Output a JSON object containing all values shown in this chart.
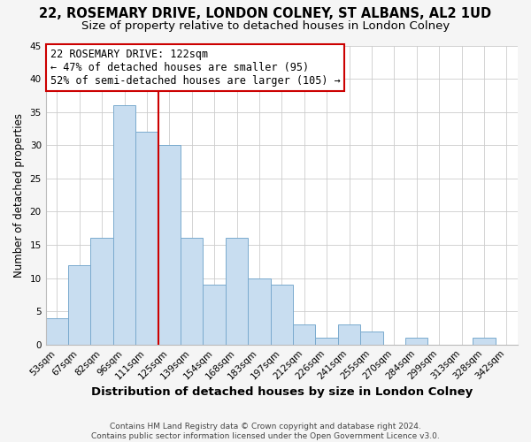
{
  "title": "22, ROSEMARY DRIVE, LONDON COLNEY, ST ALBANS, AL2 1UD",
  "subtitle": "Size of property relative to detached houses in London Colney",
  "xlabel": "Distribution of detached houses by size in London Colney",
  "ylabel": "Number of detached properties",
  "categories": [
    "53sqm",
    "67sqm",
    "82sqm",
    "96sqm",
    "111sqm",
    "125sqm",
    "139sqm",
    "154sqm",
    "168sqm",
    "183sqm",
    "197sqm",
    "212sqm",
    "226sqm",
    "241sqm",
    "255sqm",
    "270sqm",
    "284sqm",
    "299sqm",
    "313sqm",
    "328sqm",
    "342sqm"
  ],
  "values": [
    4,
    12,
    16,
    36,
    32,
    30,
    16,
    9,
    16,
    10,
    9,
    3,
    1,
    3,
    2,
    0,
    1,
    0,
    0,
    1,
    0
  ],
  "bar_color": "#c8ddf0",
  "bar_edge_color": "#7aaace",
  "vline_x_index": 4.5,
  "vline_color": "#cc0000",
  "annotation_line1": "22 ROSEMARY DRIVE: 122sqm",
  "annotation_line2": "← 47% of detached houses are smaller (95)",
  "annotation_line3": "52% of semi-detached houses are larger (105) →",
  "annotation_box_color": "#ffffff",
  "annotation_box_edge_color": "#cc0000",
  "ylim": [
    0,
    45
  ],
  "yticks": [
    0,
    5,
    10,
    15,
    20,
    25,
    30,
    35,
    40,
    45
  ],
  "title_fontsize": 10.5,
  "subtitle_fontsize": 9.5,
  "xlabel_fontsize": 9.5,
  "ylabel_fontsize": 8.5,
  "tick_fontsize": 7.5,
  "ann_fontsize": 8.5,
  "footer_text": "Contains HM Land Registry data © Crown copyright and database right 2024.\nContains public sector information licensed under the Open Government Licence v3.0.",
  "background_color": "#f5f5f5",
  "plot_background_color": "#ffffff"
}
